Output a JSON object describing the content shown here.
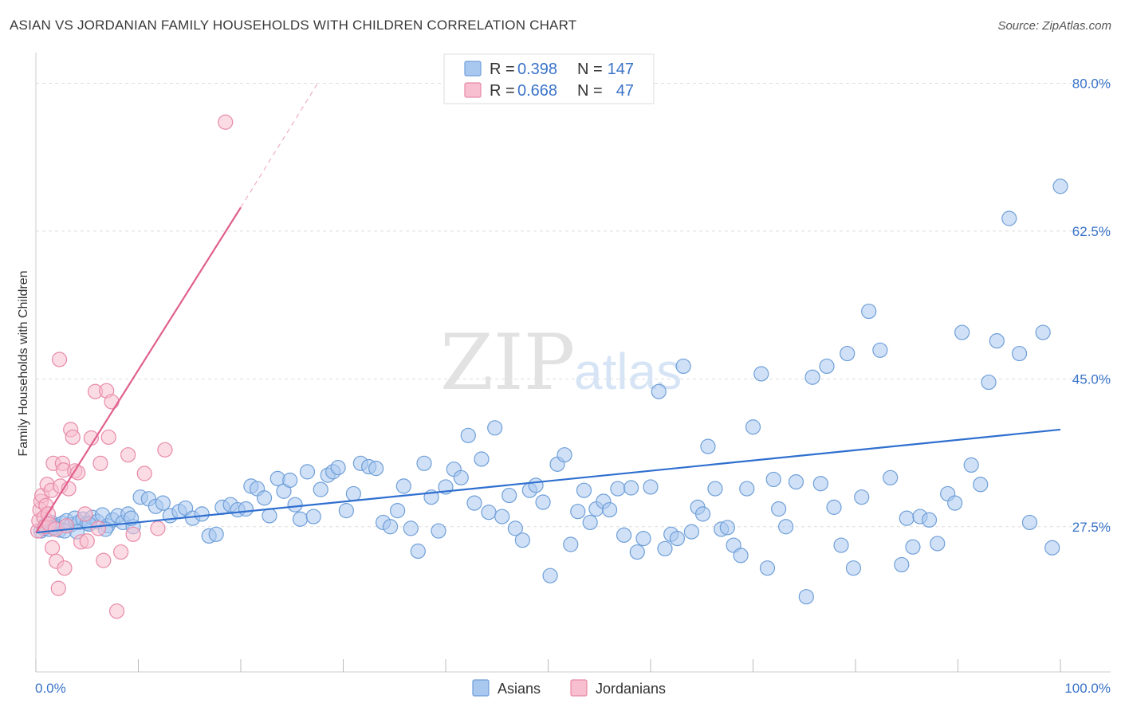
{
  "title": "ASIAN VS JORDANIAN FAMILY HOUSEHOLDS WITH CHILDREN CORRELATION CHART",
  "source": "Source: ZipAtlas.com",
  "watermark": {
    "zip": "ZIP",
    "atlas": "atlas"
  },
  "legend": {
    "rows": [
      {
        "r_label": "R =",
        "r_value": "0.398",
        "n_label": "N =",
        "n_value": "147",
        "color": "#a9c8f0",
        "stroke": "#6f9fd8"
      },
      {
        "r_label": "R =",
        "r_value": "0.668",
        "n_label": "N =",
        "n_value": "47",
        "color": "#f7bfd0",
        "stroke": "#e88aa8"
      }
    ]
  },
  "bottom_legend": [
    {
      "label": "Asians",
      "color": "#a9c8f0",
      "stroke": "#6f9fd8"
    },
    {
      "label": "Jordanians",
      "color": "#f7bfd0",
      "stroke": "#e88aa8"
    }
  ],
  "chart_data": {
    "type": "scatter",
    "title": "ASIAN VS JORDANIAN FAMILY HOUSEHOLDS WITH CHILDREN CORRELATION CHART",
    "xlabel": "",
    "ylabel": "Family Households with Children",
    "xlim": [
      0,
      100
    ],
    "ylim": [
      10.3,
      82.5
    ],
    "x_tick_labels": [
      "0.0%",
      "100.0%"
    ],
    "y_ticks": [
      27.5,
      45.0,
      62.5,
      80.0
    ],
    "y_tick_labels": [
      "27.5%",
      "45.0%",
      "62.5%",
      "80.0%"
    ],
    "grid": true,
    "legend_position": "top-center",
    "series": [
      {
        "name": "Asians",
        "color": "#6f9fd8",
        "fill": "#a9c8f0",
        "trend": {
          "x": [
            0,
            100
          ],
          "y": [
            26.8,
            39.0
          ],
          "color": "#2f6fcf"
        },
        "points": [
          [
            0.5,
            27.0
          ],
          [
            0.8,
            27.3
          ],
          [
            1.0,
            27.8
          ],
          [
            1.3,
            27.2
          ],
          [
            1.5,
            28.0
          ],
          [
            2.0,
            27.6
          ],
          [
            2.3,
            27.1
          ],
          [
            2.6,
            27.9
          ],
          [
            3.0,
            28.2
          ],
          [
            3.4,
            27.7
          ],
          [
            3.8,
            28.5
          ],
          [
            4.2,
            28.0
          ],
          [
            4.6,
            28.4
          ],
          [
            5.0,
            27.9
          ],
          [
            5.5,
            28.6
          ],
          [
            6.0,
            28.1
          ],
          [
            6.5,
            28.9
          ],
          [
            7.0,
            27.6
          ],
          [
            7.5,
            28.3
          ],
          [
            8.0,
            28.8
          ],
          [
            8.5,
            28.0
          ],
          [
            9.0,
            29.0
          ],
          [
            9.5,
            27.5
          ],
          [
            10.2,
            31.0
          ],
          [
            11.0,
            30.8
          ],
          [
            11.7,
            29.9
          ],
          [
            12.4,
            30.3
          ],
          [
            13.1,
            28.8
          ],
          [
            14.0,
            29.3
          ],
          [
            14.6,
            29.7
          ],
          [
            15.3,
            28.5
          ],
          [
            16.2,
            29.0
          ],
          [
            16.9,
            26.4
          ],
          [
            17.6,
            26.6
          ],
          [
            18.2,
            29.8
          ],
          [
            19.0,
            30.1
          ],
          [
            19.7,
            29.5
          ],
          [
            20.5,
            29.6
          ],
          [
            21.0,
            32.3
          ],
          [
            21.6,
            32.0
          ],
          [
            22.3,
            30.9
          ],
          [
            22.8,
            28.8
          ],
          [
            23.6,
            33.2
          ],
          [
            24.2,
            31.7
          ],
          [
            24.8,
            33.0
          ],
          [
            25.3,
            30.1
          ],
          [
            25.8,
            28.4
          ],
          [
            26.5,
            34.0
          ],
          [
            27.1,
            28.7
          ],
          [
            27.8,
            31.9
          ],
          [
            28.5,
            33.6
          ],
          [
            29.0,
            34.0
          ],
          [
            29.5,
            34.5
          ],
          [
            30.3,
            29.4
          ],
          [
            31.0,
            31.4
          ],
          [
            31.7,
            35.0
          ],
          [
            32.5,
            34.6
          ],
          [
            33.2,
            34.4
          ],
          [
            33.9,
            28.0
          ],
          [
            34.6,
            27.5
          ],
          [
            35.3,
            29.4
          ],
          [
            35.9,
            32.3
          ],
          [
            36.6,
            27.3
          ],
          [
            37.3,
            24.6
          ],
          [
            37.9,
            35.0
          ],
          [
            38.6,
            31.0
          ],
          [
            39.3,
            27.0
          ],
          [
            40.0,
            32.2
          ],
          [
            40.8,
            34.3
          ],
          [
            41.5,
            33.3
          ],
          [
            42.2,
            38.3
          ],
          [
            42.8,
            30.3
          ],
          [
            43.5,
            35.5
          ],
          [
            44.2,
            29.2
          ],
          [
            44.8,
            39.2
          ],
          [
            45.5,
            28.7
          ],
          [
            46.2,
            31.2
          ],
          [
            46.8,
            27.3
          ],
          [
            47.5,
            25.9
          ],
          [
            48.2,
            31.8
          ],
          [
            48.8,
            32.4
          ],
          [
            49.5,
            30.4
          ],
          [
            50.2,
            21.7
          ],
          [
            50.9,
            34.9
          ],
          [
            51.6,
            36.0
          ],
          [
            52.2,
            25.4
          ],
          [
            52.9,
            29.3
          ],
          [
            53.5,
            31.8
          ],
          [
            54.1,
            28.0
          ],
          [
            54.7,
            29.6
          ],
          [
            55.4,
            30.5
          ],
          [
            56.0,
            29.5
          ],
          [
            56.8,
            32.0
          ],
          [
            57.4,
            26.5
          ],
          [
            58.1,
            32.1
          ],
          [
            58.7,
            24.5
          ],
          [
            59.3,
            26.1
          ],
          [
            60.0,
            32.2
          ],
          [
            60.8,
            43.5
          ],
          [
            61.4,
            24.9
          ],
          [
            62.0,
            26.6
          ],
          [
            62.6,
            26.1
          ],
          [
            63.2,
            46.5
          ],
          [
            64.0,
            26.9
          ],
          [
            64.6,
            29.8
          ],
          [
            65.1,
            29.0
          ],
          [
            65.6,
            37.0
          ],
          [
            66.3,
            32.0
          ],
          [
            66.9,
            27.2
          ],
          [
            67.5,
            27.4
          ],
          [
            68.1,
            25.3
          ],
          [
            68.8,
            24.1
          ],
          [
            69.4,
            32.0
          ],
          [
            70.0,
            39.3
          ],
          [
            70.8,
            45.6
          ],
          [
            71.4,
            22.6
          ],
          [
            72.0,
            33.1
          ],
          [
            72.5,
            29.6
          ],
          [
            73.2,
            27.5
          ],
          [
            74.2,
            32.8
          ],
          [
            75.2,
            19.2
          ],
          [
            75.8,
            45.2
          ],
          [
            76.6,
            32.6
          ],
          [
            77.2,
            46.5
          ],
          [
            77.9,
            29.8
          ],
          [
            78.6,
            25.3
          ],
          [
            79.2,
            48.0
          ],
          [
            79.8,
            22.6
          ],
          [
            80.6,
            31.0
          ],
          [
            81.3,
            53.0
          ],
          [
            82.4,
            48.4
          ],
          [
            83.4,
            33.3
          ],
          [
            84.5,
            23.0
          ],
          [
            85.0,
            28.5
          ],
          [
            85.6,
            25.1
          ],
          [
            86.3,
            28.7
          ],
          [
            87.2,
            28.3
          ],
          [
            88.0,
            25.5
          ],
          [
            89.0,
            31.4
          ],
          [
            89.7,
            30.3
          ],
          [
            90.4,
            50.5
          ],
          [
            91.3,
            34.8
          ],
          [
            92.2,
            32.5
          ],
          [
            93.0,
            44.6
          ],
          [
            93.8,
            49.5
          ],
          [
            95.0,
            64.0
          ],
          [
            96.0,
            48.0
          ],
          [
            97.0,
            28.0
          ],
          [
            98.3,
            50.5
          ],
          [
            99.2,
            25.0
          ],
          [
            100.0,
            67.8
          ],
          [
            1.8,
            27.4
          ],
          [
            2.8,
            27.0
          ],
          [
            4.0,
            26.9
          ],
          [
            5.2,
            27.8
          ],
          [
            6.8,
            27.2
          ],
          [
            9.3,
            28.5
          ]
        ]
      },
      {
        "name": "Jordanians",
        "color": "#e88aa8",
        "fill": "#f7bfd0",
        "trend": {
          "x": [
            0,
            20
          ],
          "y": [
            26.8,
            65.3
          ],
          "dashed_to": {
            "x": [
              20,
              27.5
            ],
            "y": [
              65.3,
              80.0
            ]
          },
          "color": "#e0608e"
        },
        "points": [
          [
            0.2,
            27.0
          ],
          [
            0.3,
            28.2
          ],
          [
            0.4,
            29.5
          ],
          [
            0.5,
            30.5
          ],
          [
            0.6,
            31.2
          ],
          [
            0.8,
            28.6
          ],
          [
            0.9,
            27.5
          ],
          [
            1.0,
            30.0
          ],
          [
            1.1,
            32.5
          ],
          [
            1.2,
            29.0
          ],
          [
            1.3,
            27.8
          ],
          [
            1.5,
            31.8
          ],
          [
            1.6,
            25.0
          ],
          [
            1.7,
            35.0
          ],
          [
            1.9,
            27.2
          ],
          [
            2.0,
            23.4
          ],
          [
            2.2,
            20.2
          ],
          [
            2.3,
            47.3
          ],
          [
            2.4,
            32.3
          ],
          [
            2.6,
            35.0
          ],
          [
            2.7,
            34.2
          ],
          [
            2.8,
            22.6
          ],
          [
            3.0,
            27.6
          ],
          [
            3.2,
            32.0
          ],
          [
            3.4,
            39.0
          ],
          [
            3.6,
            38.1
          ],
          [
            3.8,
            34.1
          ],
          [
            4.1,
            33.9
          ],
          [
            4.4,
            25.7
          ],
          [
            4.8,
            29.0
          ],
          [
            5.0,
            25.8
          ],
          [
            5.4,
            38.0
          ],
          [
            5.8,
            43.5
          ],
          [
            6.1,
            27.3
          ],
          [
            6.3,
            35.0
          ],
          [
            6.6,
            23.5
          ],
          [
            6.9,
            43.6
          ],
          [
            7.1,
            38.1
          ],
          [
            7.4,
            42.3
          ],
          [
            7.9,
            17.5
          ],
          [
            8.3,
            24.5
          ],
          [
            9.0,
            36.0
          ],
          [
            9.5,
            26.6
          ],
          [
            10.6,
            33.8
          ],
          [
            11.9,
            27.3
          ],
          [
            12.6,
            36.6
          ],
          [
            18.5,
            75.4
          ]
        ]
      }
    ]
  }
}
